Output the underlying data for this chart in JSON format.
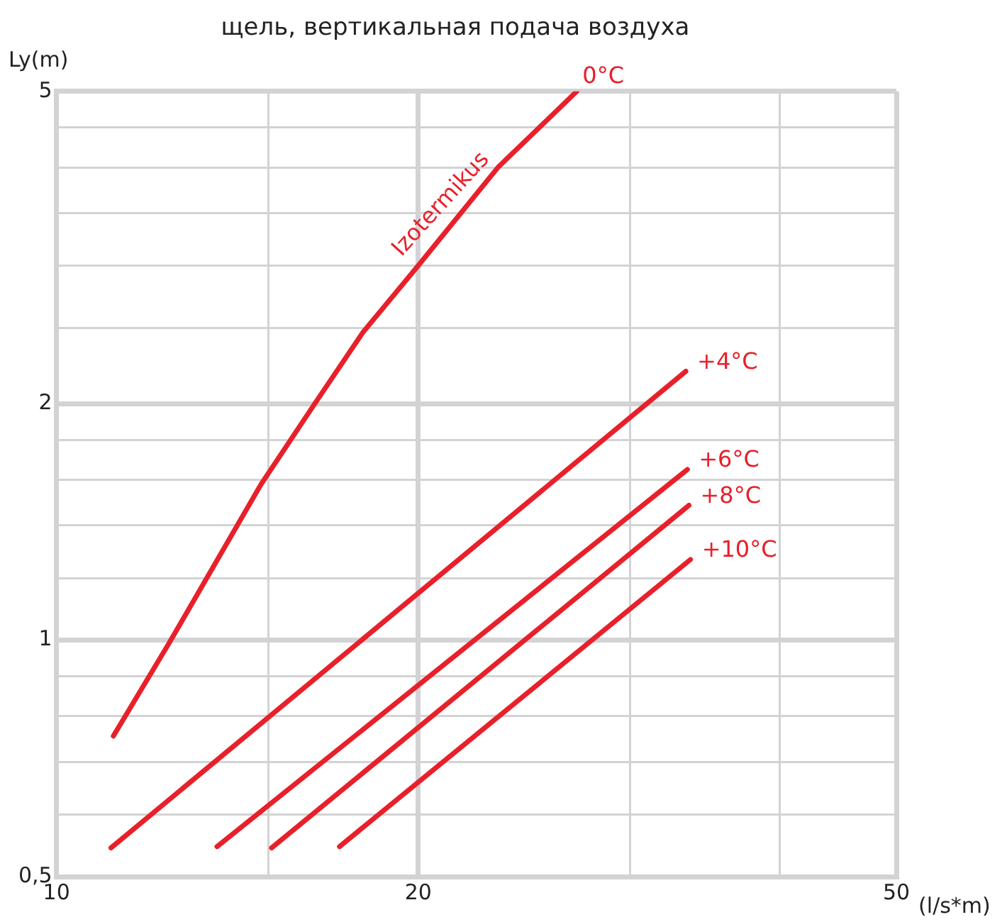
{
  "chart_data": {
    "type": "line",
    "title": "щель, вертикальная подача воздуха",
    "xlabel": "(l/s*m)",
    "ylabel": "Ly(m)",
    "log": "xy",
    "grid": true,
    "legend": false,
    "marker": "none",
    "line_style": "solid",
    "xlim": [
      10,
      50
    ],
    "ylim": [
      0.5,
      5
    ],
    "xticks": [
      10,
      {
        "value": 15,
        "label": null
      },
      20,
      {
        "value": 30,
        "label": null
      },
      {
        "value": 40,
        "label": null
      },
      50
    ],
    "yticks": [
      {
        "value": 0.5,
        "label": "0,5"
      },
      {
        "value": 0.6,
        "label": null
      },
      {
        "value": 0.7,
        "label": null
      },
      {
        "value": 0.8,
        "label": null
      },
      {
        "value": 0.9,
        "label": null
      },
      1,
      {
        "value": 1.2,
        "label": null
      },
      {
        "value": 1.4,
        "label": null
      },
      {
        "value": 1.6,
        "label": null
      },
      {
        "value": 1.8,
        "label": null
      },
      2,
      {
        "value": 2.5,
        "label": null
      },
      {
        "value": 3,
        "label": null
      },
      {
        "value": 3.5,
        "label": null
      },
      {
        "value": 4,
        "label": null
      },
      {
        "value": 4.5,
        "label": null
      },
      5
    ],
    "series": [
      {
        "name": "0°C",
        "color": "#e8202a",
        "x": [
          11.15,
          12.4,
          14.8,
          16.4,
          18.0,
          20.0,
          23.3,
          27.1
        ],
        "values": [
          0.755,
          0.99,
          1.58,
          2.0,
          2.47,
          3.0,
          4.0,
          5.0
        ]
      },
      {
        "name": "+4°C",
        "color": "#e8202a",
        "x": [
          11.1,
          33.4
        ],
        "values": [
          0.544,
          2.2
        ]
      },
      {
        "name": "+6°C",
        "color": "#e8202a",
        "x": [
          13.6,
          33.5
        ],
        "values": [
          0.546,
          1.65
        ]
      },
      {
        "name": "+8°C",
        "color": "#e8202a",
        "x": [
          15.1,
          33.6
        ],
        "values": [
          0.544,
          1.485
        ]
      },
      {
        "name": "+10°C",
        "color": "#e8202a",
        "x": [
          17.2,
          33.7
        ],
        "values": [
          0.546,
          1.267
        ]
      }
    ],
    "annotations": [
      {
        "text": "Izotermikus",
        "x": 21.5,
        "y": 3.45
      }
    ]
  }
}
